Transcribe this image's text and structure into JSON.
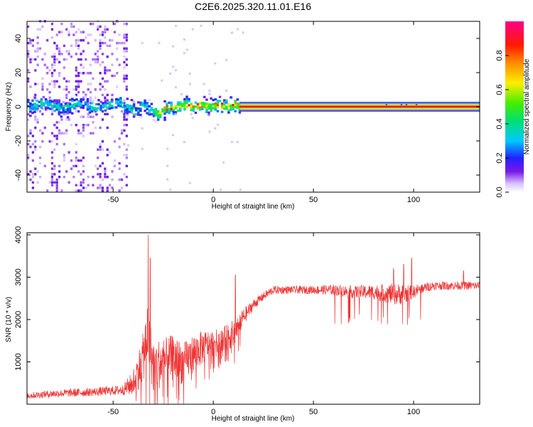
{
  "title": "C2E6.2025.320.11.01.E16",
  "chart_data": [
    {
      "type": "heatmap",
      "xlabel": "Height of straight line (km)",
      "ylabel": "Frequency (Hz)",
      "xlim": [
        -93,
        133
      ],
      "ylim": [
        -50,
        50
      ],
      "xticks": [
        -50,
        0,
        50,
        100
      ],
      "yticks": [
        -40,
        -20,
        0,
        20,
        40
      ],
      "grid": false,
      "colorbar": {
        "label": "Normalized spectral amplitude",
        "range": [
          0,
          1
        ],
        "ticks": [
          "0.0",
          "0.2",
          "0.4",
          "0.6",
          "0.8"
        ],
        "colormap": "rainbow (white to purple to blue to cyan to green to yellow to orange to red to magenta)"
      },
      "features": [
        {
          "region": "x -93 to -43 km",
          "description": "scattered low-amplitude purple noise across all frequencies, vertical streaks"
        },
        {
          "region": "x -93 to -25 km",
          "description": "blue/cyan band around 0 Hz wobbling between about +5 and -5 Hz"
        },
        {
          "region": "x -25 to 13 km",
          "description": "band tightens near 0 Hz with cyan, yellow and red patches"
        },
        {
          "region": "x 13 to 133 km",
          "description": "steady narrow band at 0 Hz, red core of about 1 normalized amplitude"
        }
      ]
    },
    {
      "type": "line",
      "xlabel": "Height of straight line (km)",
      "ylabel": "SNR (10 * v/v)",
      "xlim": [
        -93,
        133
      ],
      "ylim": [
        0,
        4050
      ],
      "xticks": [
        -50,
        0,
        50,
        100
      ],
      "yticks": [
        1000,
        2000,
        3000,
        4000
      ],
      "grid": false,
      "color": "#ee3333",
      "envelope": {
        "x": [
          -93,
          -80,
          -70,
          -60,
          -50,
          -45,
          -40,
          -35,
          -33,
          -30,
          -25,
          -20,
          -15,
          -10,
          -5,
          0,
          5,
          10,
          15,
          20,
          25,
          30,
          40,
          50,
          60,
          70,
          80,
          90,
          95,
          100,
          105,
          110,
          120,
          133
        ],
        "mean": [
          200,
          250,
          270,
          290,
          320,
          340,
          500,
          1100,
          1700,
          900,
          1000,
          1100,
          950,
          1200,
          1350,
          1450,
          1550,
          1650,
          2050,
          2350,
          2550,
          2700,
          2700,
          2700,
          2700,
          2650,
          2650,
          2600,
          2600,
          2650,
          2750,
          2800,
          2800,
          2800
        ],
        "spread": [
          150,
          180,
          200,
          200,
          220,
          250,
          600,
          1200,
          1400,
          1300,
          1100,
          1100,
          1000,
          900,
          800,
          600,
          550,
          700,
          400,
          250,
          200,
          200,
          180,
          200,
          250,
          300,
          350,
          500,
          500,
          300,
          250,
          200,
          200,
          200
        ]
      },
      "peaks": [
        {
          "x": -32.5,
          "y": 4000
        },
        {
          "x": -31.5,
          "y": 3450
        },
        {
          "x": 11,
          "y": 3050
        },
        {
          "x": 99,
          "y": 3450
        },
        {
          "x": 95,
          "y": 3300
        },
        {
          "x": 90,
          "y": 3200
        },
        {
          "x": 125,
          "y": 3150
        }
      ]
    }
  ]
}
